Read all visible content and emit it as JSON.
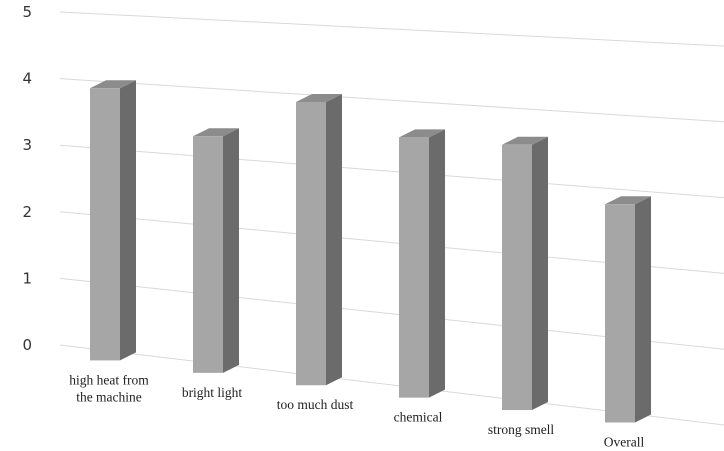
{
  "chart_data": {
    "type": "bar",
    "style": "3d-column",
    "categories": [
      [
        "high heat from",
        "the machine"
      ],
      [
        "bright light"
      ],
      [
        "too much dust"
      ],
      [
        "chemical"
      ],
      [
        "strong smell"
      ],
      [
        "Overall"
      ]
    ],
    "values": [
      3.9,
      3.3,
      3.9,
      3.5,
      3.5,
      2.8
    ],
    "ylim": [
      0,
      5
    ],
    "yticks": [
      "0",
      "1",
      "2",
      "3",
      "4",
      "5"
    ],
    "grid": true,
    "legend": "none",
    "colors": {
      "bar_front": "#a6a6a6",
      "bar_side": "#6b6b6b",
      "bar_top": "#8c8c8c",
      "grid": "#d9d9d9"
    }
  }
}
